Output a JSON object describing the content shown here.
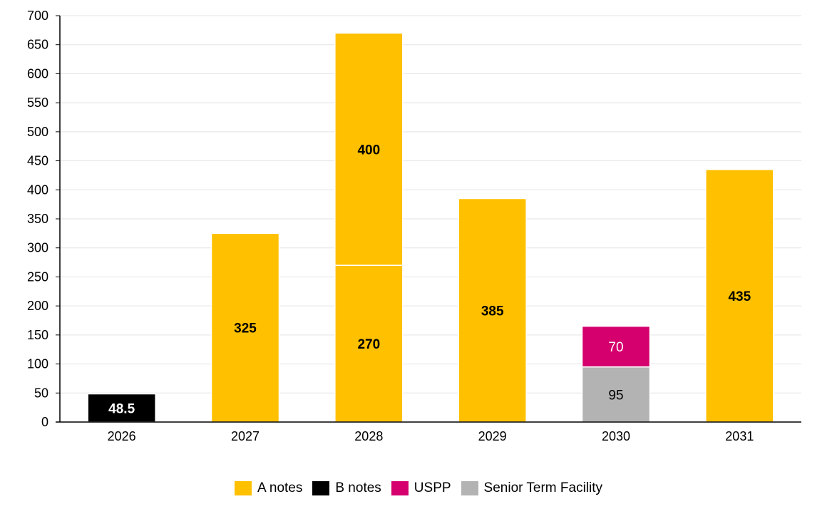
{
  "chart_data": {
    "type": "bar",
    "stacked": true,
    "title": "",
    "xlabel": "",
    "ylabel": "",
    "ylim": [
      0,
      700
    ],
    "yticks": [
      0,
      50,
      100,
      150,
      200,
      250,
      300,
      350,
      400,
      450,
      500,
      550,
      600,
      650,
      700
    ],
    "grid": true,
    "legend_position": "bottom-center",
    "categories": [
      "2026",
      "2027",
      "2028",
      "2029",
      "2030",
      "2031"
    ],
    "series": [
      {
        "name": "A notes",
        "color": "#FFC000"
      },
      {
        "name": "B notes",
        "color": "#000000"
      },
      {
        "name": "USPP",
        "color": "#D5006D"
      },
      {
        "name": "Senior Term Facility",
        "color": "#B3B3B3"
      }
    ],
    "stacks": [
      [
        {
          "series": "B notes",
          "value": 48.5,
          "label": "48.5"
        }
      ],
      [
        {
          "series": "A notes",
          "value": 325,
          "label": "325"
        }
      ],
      [
        {
          "series": "A notes",
          "value": 270,
          "label": "270"
        },
        {
          "series": "A notes",
          "value": 400,
          "label": "400"
        }
      ],
      [
        {
          "series": "A notes",
          "value": 385,
          "label": "385"
        }
      ],
      [
        {
          "series": "Senior Term Facility",
          "value": 95,
          "label": "95"
        },
        {
          "series": "USPP",
          "value": 70,
          "label": "70"
        }
      ],
      [
        {
          "series": "A notes",
          "value": 435,
          "label": "435"
        }
      ]
    ]
  }
}
